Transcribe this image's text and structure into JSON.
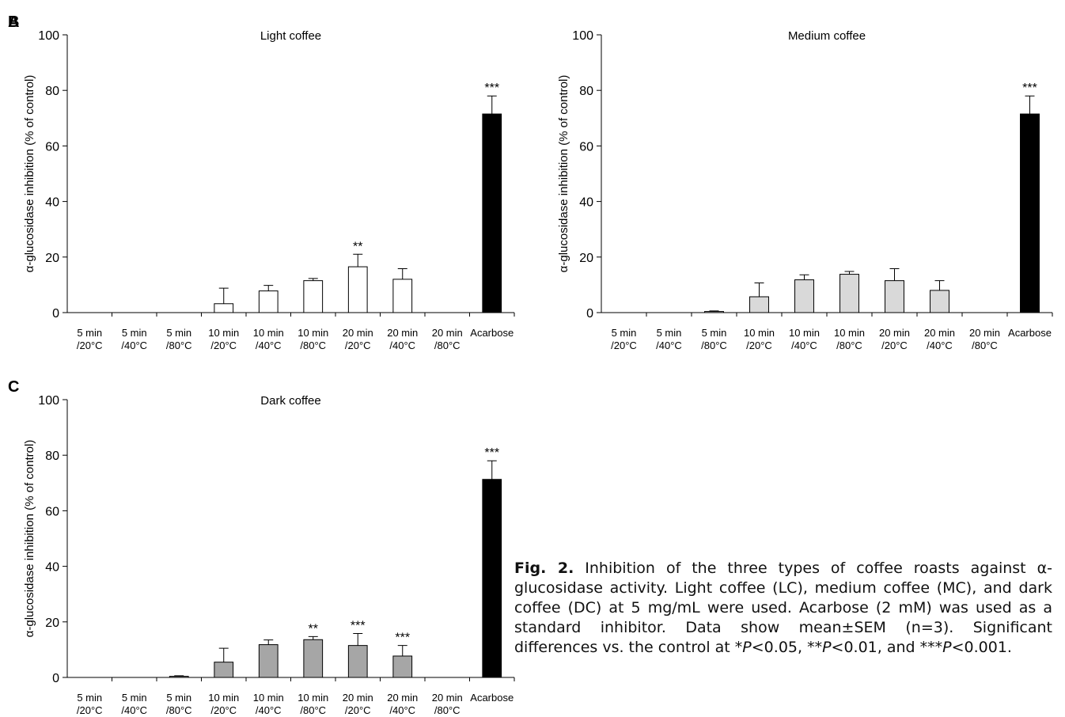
{
  "chart_data": [
    {
      "type": "bar",
      "panel_label": "A",
      "title": "Light coffee",
      "y_label": "α-glucosidase inhibition (% of control)",
      "categories": [
        [
          "5 min",
          "/20°C"
        ],
        [
          "5 min",
          "/40°C"
        ],
        [
          "5 min",
          "/80°C"
        ],
        [
          "10 min",
          "/20°C"
        ],
        [
          "10 min",
          "/40°C"
        ],
        [
          "10 min",
          "/80°C"
        ],
        [
          "20 min",
          "/20°C"
        ],
        [
          "20 min",
          "/40°C"
        ],
        [
          "20 min",
          "/80°C"
        ],
        [
          "Acarbose"
        ]
      ],
      "values": [
        0,
        0,
        0,
        3.2,
        7.8,
        11.5,
        16.5,
        12,
        0,
        71.5
      ],
      "errors": [
        0,
        0,
        0,
        5.6,
        2,
        0.8,
        4.5,
        3.8,
        0,
        6.5
      ],
      "significance": [
        null,
        null,
        null,
        null,
        null,
        null,
        "**",
        null,
        null,
        "***"
      ],
      "colors": [
        "#ffffff",
        "#ffffff",
        "#ffffff",
        "#ffffff",
        "#ffffff",
        "#ffffff",
        "#ffffff",
        "#ffffff",
        "#ffffff",
        "#000000"
      ],
      "ylim": [
        0,
        100
      ],
      "yticks": [
        0,
        20,
        40,
        60,
        80,
        100
      ]
    },
    {
      "type": "bar",
      "panel_label": "B",
      "title": "Medium coffee",
      "y_label": "α-glucosidase inhibition (% of control)",
      "categories": [
        [
          "5 min",
          "/20°C"
        ],
        [
          "5 min",
          "/40°C"
        ],
        [
          "5 min",
          "/80°C"
        ],
        [
          "10 min",
          "/20°C"
        ],
        [
          "10 min",
          "/40°C"
        ],
        [
          "10 min",
          "/80°C"
        ],
        [
          "20 min",
          "/20°C"
        ],
        [
          "20 min",
          "/40°C"
        ],
        [
          "20 min",
          "/80°C"
        ],
        [
          "Acarbose"
        ]
      ],
      "values": [
        0,
        0,
        0.4,
        5.7,
        11.8,
        13.8,
        11.5,
        8,
        0,
        71.5
      ],
      "errors": [
        0,
        0,
        0.2,
        5,
        1.8,
        1,
        4.3,
        3.5,
        0,
        6.5
      ],
      "significance": [
        null,
        null,
        null,
        null,
        null,
        null,
        null,
        null,
        null,
        "***"
      ],
      "colors": [
        "#d9d9d9",
        "#d9d9d9",
        "#d9d9d9",
        "#d9d9d9",
        "#d9d9d9",
        "#d9d9d9",
        "#d9d9d9",
        "#d9d9d9",
        "#d9d9d9",
        "#000000"
      ],
      "ylim": [
        0,
        100
      ],
      "yticks": [
        0,
        20,
        40,
        60,
        80,
        100
      ]
    },
    {
      "type": "bar",
      "panel_label": "C",
      "title": "Dark coffee",
      "y_label": "α-glucosidase inhibition (% of control)",
      "categories": [
        [
          "5 min",
          "/20°C"
        ],
        [
          "5 min",
          "/40°C"
        ],
        [
          "5 min",
          "/80°C"
        ],
        [
          "10 min",
          "/20°C"
        ],
        [
          "10 min",
          "/40°C"
        ],
        [
          "10 min",
          "/80°C"
        ],
        [
          "20 min",
          "/20°C"
        ],
        [
          "20 min",
          "/40°C"
        ],
        [
          "20 min",
          "/80°C"
        ],
        [
          "Acarbose"
        ]
      ],
      "values": [
        0,
        0,
        0.4,
        5.5,
        11.8,
        13.6,
        11.5,
        7.7,
        0,
        71.3
      ],
      "errors": [
        0,
        0,
        0.2,
        5,
        1.7,
        1.1,
        4.3,
        3.8,
        0,
        6.7
      ],
      "significance": [
        null,
        null,
        null,
        null,
        null,
        "**",
        "***",
        "***",
        null,
        "***"
      ],
      "colors": [
        "#a6a6a6",
        "#a6a6a6",
        "#a6a6a6",
        "#a6a6a6",
        "#a6a6a6",
        "#a6a6a6",
        "#a6a6a6",
        "#a6a6a6",
        "#a6a6a6",
        "#000000"
      ],
      "ylim": [
        0,
        100
      ],
      "yticks": [
        0,
        20,
        40,
        60,
        80,
        100
      ]
    }
  ],
  "caption": {
    "label": "Fig. 2.",
    "parts": [
      {
        "text": " Inhibition of the three types of coffee roasts against α-glucosidase activity. Light coffee (LC), medium coffee (MC), and dark coffee (DC) at 5 mg/mL were used. Acarbose (2 mM) was used as a standard inhibitor. Data show mean±SEM (n=3). Significant differences vs. the control at *",
        "italic": false
      },
      {
        "text": "P",
        "italic": true
      },
      {
        "text": "<0.05, **",
        "italic": false
      },
      {
        "text": "P",
        "italic": true
      },
      {
        "text": "<0.01, and ***",
        "italic": false
      },
      {
        "text": "P",
        "italic": true
      },
      {
        "text": "<0.001.",
        "italic": false
      }
    ]
  }
}
